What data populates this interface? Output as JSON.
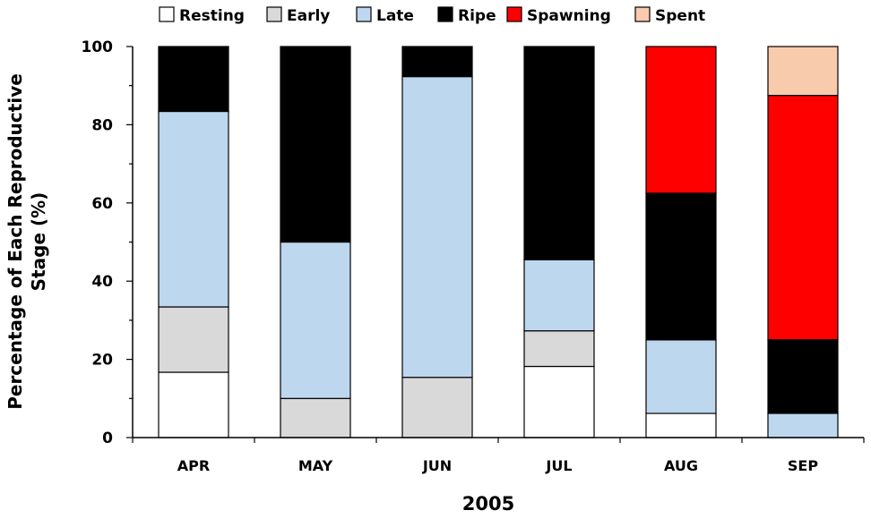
{
  "chart_data": {
    "type": "bar",
    "stacked": true,
    "title": "",
    "xlabel": "2005",
    "ylabel_lines": [
      "Percentage of Each Reproductive",
      "Stage (%)"
    ],
    "ylim": [
      0,
      100
    ],
    "yticks": [
      0,
      20,
      40,
      60,
      80,
      100
    ],
    "grid": false,
    "legend_position": "top",
    "categories": [
      "APR",
      "MAY",
      "JUN",
      "JUL",
      "AUG",
      "SEP"
    ],
    "series": [
      {
        "name": "Resting",
        "color": "#ffffff",
        "values": [
          16.7,
          0,
          0,
          18.2,
          6.2,
          0
        ]
      },
      {
        "name": "Early",
        "color": "#d9d9d9",
        "values": [
          16.7,
          10.0,
          15.4,
          9.1,
          0,
          0
        ]
      },
      {
        "name": "Late",
        "color": "#bdd7ee",
        "values": [
          50.0,
          40.0,
          76.9,
          18.2,
          18.8,
          6.2
        ]
      },
      {
        "name": "Ripe",
        "color": "#000000",
        "values": [
          16.6,
          50.0,
          7.7,
          54.5,
          37.5,
          18.8
        ]
      },
      {
        "name": "Spawning",
        "color": "#ff0000",
        "values": [
          0,
          0,
          0,
          0,
          37.5,
          62.5
        ]
      },
      {
        "name": "Spent",
        "color": "#f8cbad",
        "values": [
          0,
          0,
          0,
          0,
          0,
          12.5
        ]
      }
    ]
  }
}
